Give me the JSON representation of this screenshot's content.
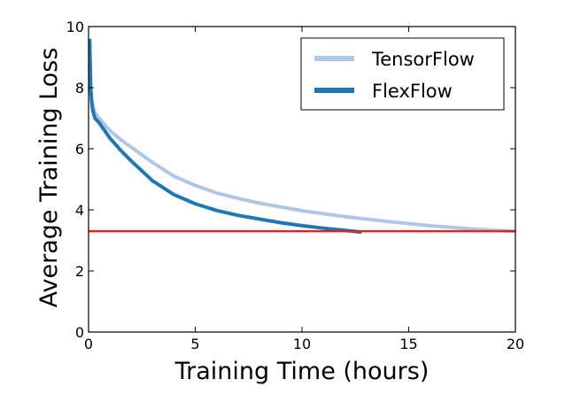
{
  "chart_data": {
    "type": "line",
    "xlabel": "Training Time (hours)",
    "ylabel": "Average Training Loss",
    "xlim": [
      0,
      20
    ],
    "ylim": [
      0,
      10
    ],
    "xticks": [
      0,
      5,
      10,
      15,
      20
    ],
    "yticks": [
      0,
      2,
      4,
      6,
      8,
      10
    ],
    "xtick_labels": [
      "0",
      "5",
      "10",
      "15",
      "20"
    ],
    "ytick_labels": [
      "0",
      "2",
      "4",
      "6",
      "8",
      "10"
    ],
    "grid": false,
    "legend_position": "top-right",
    "series": [
      {
        "name": "TensorFlow",
        "color": "#aec7e8",
        "x": [
          0.05,
          0.1,
          0.15,
          0.2,
          0.3,
          0.5,
          1,
          1.5,
          2,
          3,
          4,
          5,
          6,
          7,
          8,
          10,
          12,
          14,
          16,
          18,
          20
        ],
        "y": [
          9.6,
          8.0,
          7.6,
          7.4,
          7.2,
          7.0,
          6.6,
          6.3,
          6.05,
          5.55,
          5.1,
          4.8,
          4.55,
          4.38,
          4.22,
          3.97,
          3.78,
          3.62,
          3.48,
          3.37,
          3.3
        ]
      },
      {
        "name": "FlexFlow",
        "color": "#1f77b4",
        "x": [
          0.05,
          0.1,
          0.15,
          0.2,
          0.3,
          0.5,
          1,
          1.5,
          2,
          3,
          4,
          5,
          6,
          7,
          8,
          9,
          10,
          11,
          12,
          12.8
        ],
        "y": [
          9.6,
          8.0,
          7.5,
          7.25,
          7.0,
          6.85,
          6.35,
          5.95,
          5.6,
          4.95,
          4.5,
          4.2,
          3.98,
          3.82,
          3.7,
          3.58,
          3.48,
          3.4,
          3.33,
          3.27
        ]
      }
    ],
    "reference_line": {
      "y": 3.3,
      "color": "#d62728"
    }
  }
}
